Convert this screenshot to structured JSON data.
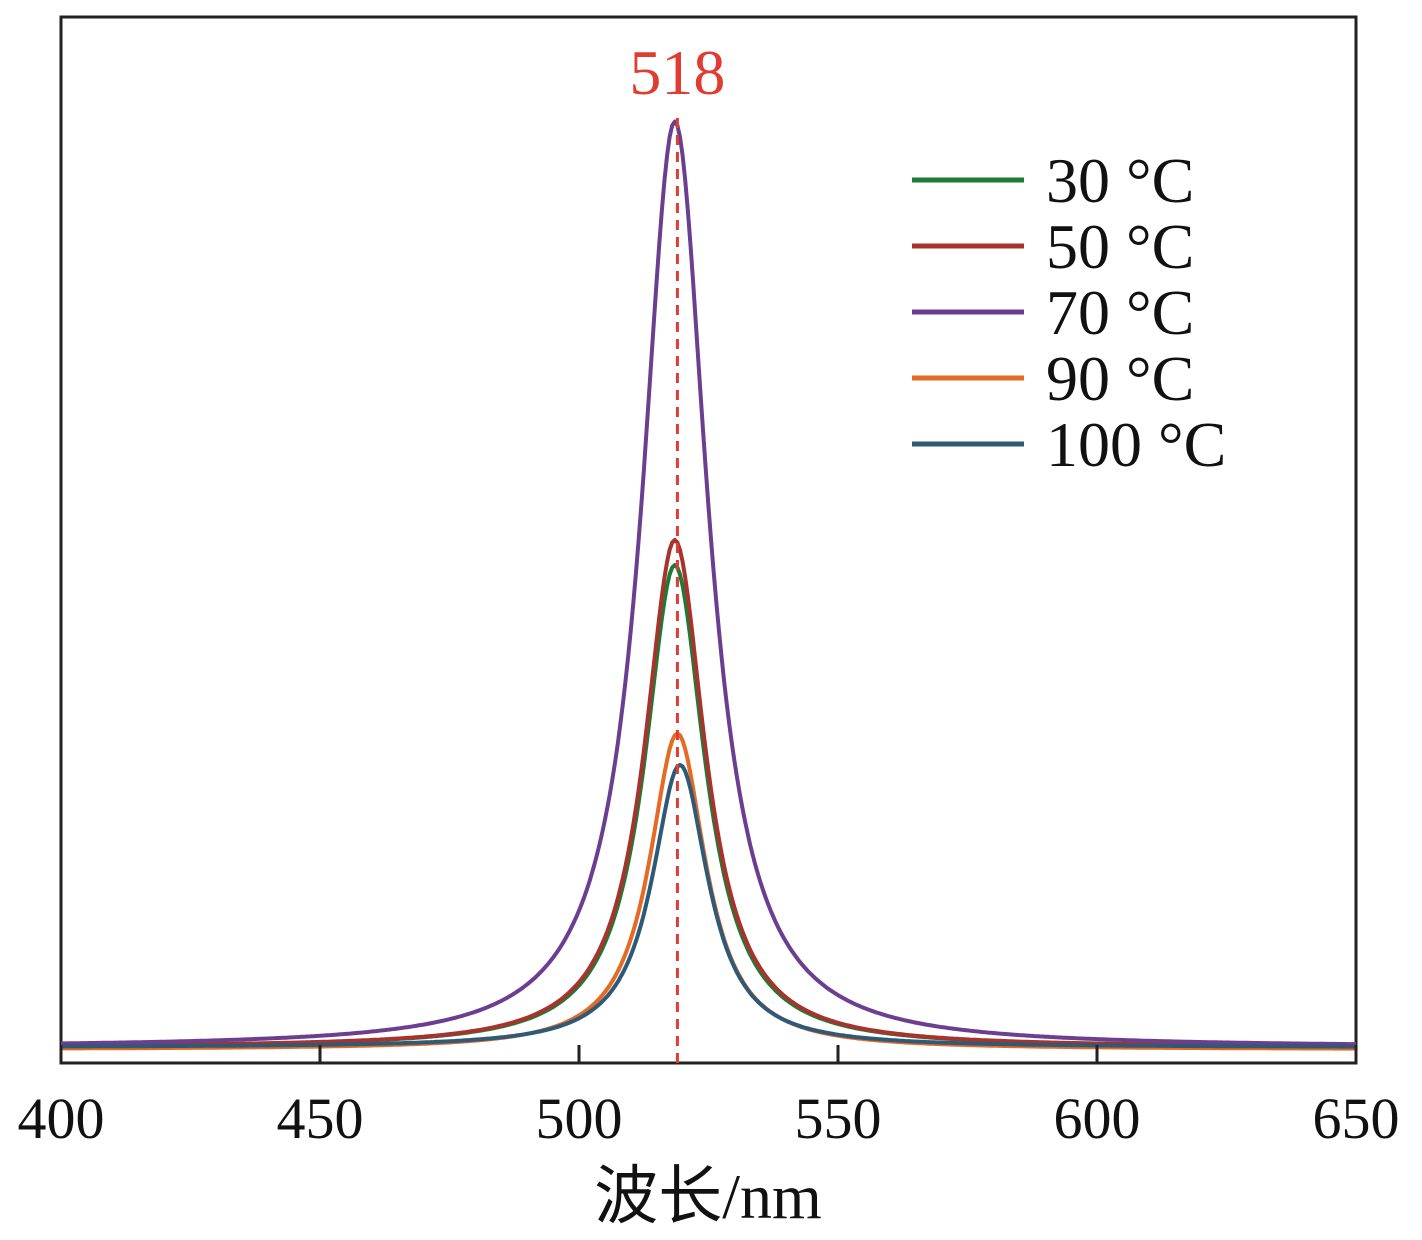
{
  "chart_data": {
    "type": "line",
    "title": "",
    "xlabel": "波长/nm",
    "ylabel": "",
    "xlim": [
      400,
      650
    ],
    "ylim": [
      0,
      1.0
    ],
    "xticks": [
      400,
      450,
      500,
      550,
      600,
      650
    ],
    "grid": false,
    "legend_position": "top-right",
    "annotation": {
      "text": "518",
      "x": 519,
      "color": "#e03c31"
    },
    "series": [
      {
        "name": "30 °C",
        "color": "#1f7a35",
        "baseline": 0.015,
        "peak_x": 518.5,
        "peak_y": 0.476,
        "width": 7.1
      },
      {
        "name": "50 °C",
        "color": "#a8322d",
        "baseline": 0.015,
        "peak_x": 518.5,
        "peak_y": 0.5,
        "width": 7.1
      },
      {
        "name": "70 °C",
        "color": "#6b3e8f",
        "baseline": 0.015,
        "peak_x": 518.5,
        "peak_y": 0.9,
        "width": 7.7
      },
      {
        "name": "90 °C",
        "color": "#e56a24",
        "baseline": 0.013,
        "peak_x": 519.0,
        "peak_y": 0.315,
        "width": 6.6
      },
      {
        "name": "100 °C",
        "color": "#2e5a77",
        "baseline": 0.015,
        "peak_x": 519.5,
        "peak_y": 0.285,
        "width": 6.6
      }
    ]
  }
}
